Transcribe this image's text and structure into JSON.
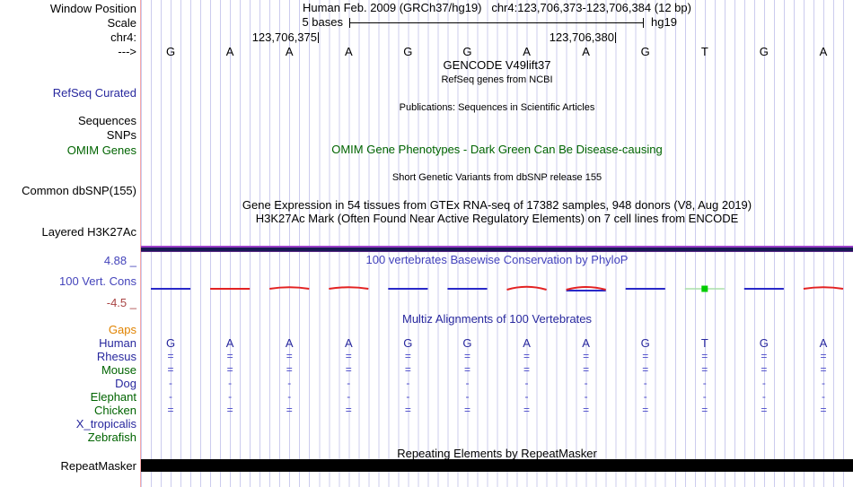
{
  "header": {
    "window_position_label": "Window Position",
    "assembly_position": "Human Feb. 2009 (GRCh37/hg19)   chr4:123,706,373-123,706,384 (12 bp)",
    "scale_label": "Scale",
    "scale_value": "5 bases",
    "assembly_tag": "hg19",
    "chrom_label": "chr4:",
    "coord_left": "123,706,375",
    "coord_right": "123,706,380",
    "strand_arrow": "--->"
  },
  "bases": [
    "G",
    "A",
    "A",
    "A",
    "G",
    "G",
    "A",
    "A",
    "G",
    "T",
    "G",
    "A"
  ],
  "tracks": {
    "gencode_title": "GENCODE V49lift37",
    "refseq_sub": "RefSeq genes from NCBI",
    "refseq_label": "RefSeq Curated",
    "sequences_label": "Sequences",
    "snps_label": "SNPs",
    "publications_title": "Publications: Sequences in Scientific Articles",
    "omim_title": "OMIM Gene Phenotypes - Dark Green Can Be Disease-causing",
    "omim_label": "OMIM Genes",
    "dbsnp_title": "Short Genetic Variants from dbSNP release 155",
    "dbsnp_label": "Common dbSNP(155)",
    "gtex_title": "Gene Expression in 54 tissues from GTEx RNA-seq of 17382 samples, 948 donors (V8, Aug 2019)",
    "h3k27ac_title": "H3K27Ac Mark (Often Found Near Active Regulatory Elements) on 7 cell lines from ENCODE",
    "h3k27ac_label": "Layered H3K27Ac",
    "repeat_title": "Repeating Elements by RepeatMasker",
    "repeat_label": "RepeatMasker"
  },
  "conservation": {
    "title": "100 vertebrates Basewise Conservation by PhyloP",
    "label": "100 Vert. Cons",
    "scale_max": "4.88 _",
    "scale_min": "-4.5 _",
    "per_base": [
      {
        "base": "G",
        "sign": "positive",
        "shape": "blue-flat"
      },
      {
        "base": "A",
        "sign": "negative",
        "shape": "red-flat"
      },
      {
        "base": "A",
        "sign": "negative",
        "shape": "red-arc-low"
      },
      {
        "base": "A",
        "sign": "negative",
        "shape": "red-arc-low"
      },
      {
        "base": "G",
        "sign": "positive",
        "shape": "blue-flat"
      },
      {
        "base": "G",
        "sign": "positive",
        "shape": "blue-flat"
      },
      {
        "base": "A",
        "sign": "negative",
        "shape": "red-arc"
      },
      {
        "base": "A",
        "sign": "mixed",
        "shape": "red-arc-blue"
      },
      {
        "base": "G",
        "sign": "positive",
        "shape": "blue-flat"
      },
      {
        "base": "T",
        "sign": "zero",
        "shape": "green-dot"
      },
      {
        "base": "G",
        "sign": "positive",
        "shape": "blue-flat"
      },
      {
        "base": "A",
        "sign": "negative",
        "shape": "red-arc-low"
      }
    ]
  },
  "multiz": {
    "title": "Multiz Alignments of 100 Vertebrates",
    "rows": [
      {
        "label": "Gaps",
        "cells": [
          "",
          "",
          "",
          "",
          "",
          "",
          "",
          "",
          "",
          "",
          "",
          ""
        ]
      },
      {
        "label": "Human",
        "cells": [
          "G",
          "A",
          "A",
          "A",
          "G",
          "G",
          "A",
          "A",
          "G",
          "T",
          "G",
          "A"
        ]
      },
      {
        "label": "Rhesus",
        "cells": [
          "=",
          "=",
          "=",
          "=",
          "=",
          "=",
          "=",
          "=",
          "=",
          "=",
          "=",
          "="
        ]
      },
      {
        "label": "Mouse",
        "cells": [
          "=",
          "=",
          "=",
          "=",
          "=",
          "=",
          "=",
          "=",
          "=",
          "=",
          "=",
          "="
        ]
      },
      {
        "label": "Dog",
        "cells": [
          "-",
          "-",
          "-",
          "-",
          "-",
          "-",
          "-",
          "-",
          "-",
          "-",
          "-",
          "-"
        ]
      },
      {
        "label": "Elephant",
        "cells": [
          "-",
          "-",
          "-",
          "-",
          "-",
          "-",
          "-",
          "-",
          "-",
          "-",
          "-",
          "-"
        ]
      },
      {
        "label": "Chicken",
        "cells": [
          "=",
          "=",
          "=",
          "=",
          "=",
          "=",
          "=",
          "=",
          "=",
          "=",
          "=",
          "="
        ]
      },
      {
        "label": "X_tropicalis",
        "cells": [
          "",
          "",
          "",
          "",
          "",
          "",
          "",
          "",
          "",
          "",
          "",
          ""
        ]
      },
      {
        "label": "Zebrafish",
        "cells": [
          "",
          "",
          "",
          "",
          "",
          "",
          "",
          "",
          "",
          "",
          "",
          ""
        ]
      }
    ]
  },
  "colors": {
    "label_navy": "#28289e",
    "title_blue": "#4242bc",
    "green": "#006400",
    "orange": "#e08300",
    "scale_max_blue": "#4444bb",
    "scale_min_maroon": "#a94444",
    "cons_pos_blue": "#2929c8",
    "cons_neg_red": "#e32222",
    "cons_zero_green": "#00cc00",
    "grid_line": "#ccccee",
    "separator_pink": "#f5a9a9",
    "h3k27ac_purple": "#9b3fc9",
    "h3k27ac_dark": "#191955",
    "repeat_black": "#000000"
  }
}
